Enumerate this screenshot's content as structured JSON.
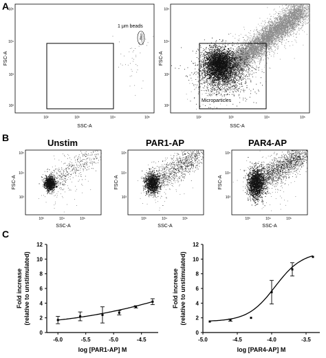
{
  "panel_labels": [
    "A",
    "B",
    "C"
  ],
  "panel_a": {
    "plots": [
      {
        "xlabel": "SSC-A",
        "ylabel": "FSC-A",
        "annotation": "1 μm beads",
        "xticks": [
          "10²",
          "10³",
          "10⁴",
          "10⁵"
        ],
        "yticks": [
          "10²",
          "10³",
          "10⁴",
          "10⁵"
        ]
      },
      {
        "xlabel": "SSC-A",
        "ylabel": "FSC-A",
        "annotation": "Microparticles",
        "xticks": [
          "10²",
          "10³",
          "10⁴",
          "10⁵"
        ],
        "yticks": [
          "10²",
          "10³",
          "10⁴",
          "10⁵"
        ]
      }
    ]
  },
  "panel_b": {
    "plots": [
      {
        "title": "Unstim",
        "xlabel": "SSC-A",
        "ylabel": "FSC-A",
        "xticks": [
          "10²",
          "10³",
          "10⁴",
          "10⁵"
        ],
        "yticks": [
          "10²",
          "10³",
          "10⁴",
          "10⁵"
        ]
      },
      {
        "title": "PAR1-AP",
        "xlabel": "SSC-A",
        "ylabel": "FSC-A",
        "xticks": [
          "10²",
          "10³",
          "10⁴",
          "10⁵"
        ],
        "yticks": [
          "10²",
          "10³",
          "10⁴",
          "10⁵"
        ]
      },
      {
        "title": "PAR4-AP",
        "xlabel": "SSC-A",
        "ylabel": "FSC-A",
        "xticks": [
          "10²",
          "10³",
          "10⁴",
          "10⁵"
        ],
        "yticks": [
          "10²",
          "10³",
          "10⁴",
          "10⁵"
        ]
      }
    ]
  },
  "colors": {
    "dense_events": "#111111",
    "bead_events": "#8c8c8c",
    "axes": "#000000"
  },
  "chart_data": [
    {
      "type": "scatter",
      "xlabel": "log [PAR1-AP] M",
      "ylabel": "Fold increase\n(relative to unstimulated)",
      "xlim": [
        -6.2,
        -4.2
      ],
      "ylim": [
        0,
        12
      ],
      "xticks": [
        "-6.0",
        "-5.5",
        "-5.0",
        "-4.5"
      ],
      "yticks": [
        "0",
        "2",
        "4",
        "6",
        "8",
        "10",
        "12"
      ],
      "grid": false,
      "series": [
        {
          "x": [
            -6.0,
            -5.6,
            -5.2,
            -4.9,
            -4.6,
            -4.3
          ],
          "y": [
            1.7,
            2.2,
            2.4,
            2.7,
            3.5,
            4.2
          ],
          "error": [
            0.5,
            0.6,
            1.1,
            0.3,
            0.15,
            0.4
          ],
          "fit": "curve"
        }
      ]
    },
    {
      "type": "scatter",
      "xlabel": "log [PAR4-AP] M",
      "ylabel": "Fold increase\n(relative to unstimulated)",
      "xlim": [
        -5.0,
        -3.3
      ],
      "ylim": [
        0,
        12
      ],
      "xticks": [
        "-5.0",
        "-4.5",
        "-4.0",
        "-3.5"
      ],
      "yticks": [
        "0",
        "2",
        "4",
        "6",
        "8",
        "10",
        "12"
      ],
      "grid": false,
      "series": [
        {
          "x": [
            -4.9,
            -4.6,
            -4.3,
            -4.0,
            -3.7,
            -3.4
          ],
          "y": [
            1.5,
            1.7,
            2.0,
            5.5,
            8.6,
            10.3
          ],
          "error": [
            0.0,
            0.15,
            0.0,
            1.6,
            0.9,
            0.0
          ],
          "fit": "sigmoid"
        }
      ]
    }
  ]
}
